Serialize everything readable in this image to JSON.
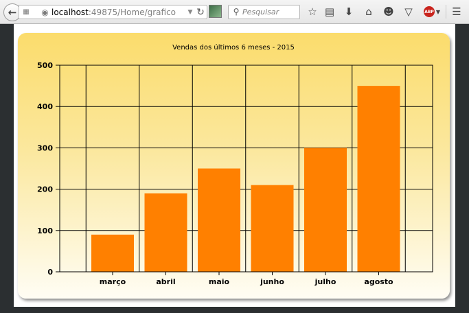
{
  "browser": {
    "url_host": "localhost",
    "url_path": ":49875/Home/grafico",
    "search_placeholder": "Pesquisar",
    "adblock_label": "ABP"
  },
  "chart_data": {
    "type": "bar",
    "title": "Vendas dos últimos 6 meses - 2015",
    "categories": [
      "março",
      "abril",
      "maio",
      "junho",
      "julho",
      "agosto"
    ],
    "values": [
      90,
      190,
      250,
      210,
      300,
      450
    ],
    "ylim": [
      0,
      500
    ],
    "yticks": [
      0,
      100,
      200,
      300,
      400,
      500
    ],
    "xlabel": "",
    "ylabel": "",
    "grid": true,
    "bar_color": "#ff8000",
    "background_gradient": [
      "#fbdc6c",
      "#fffdf4"
    ]
  }
}
